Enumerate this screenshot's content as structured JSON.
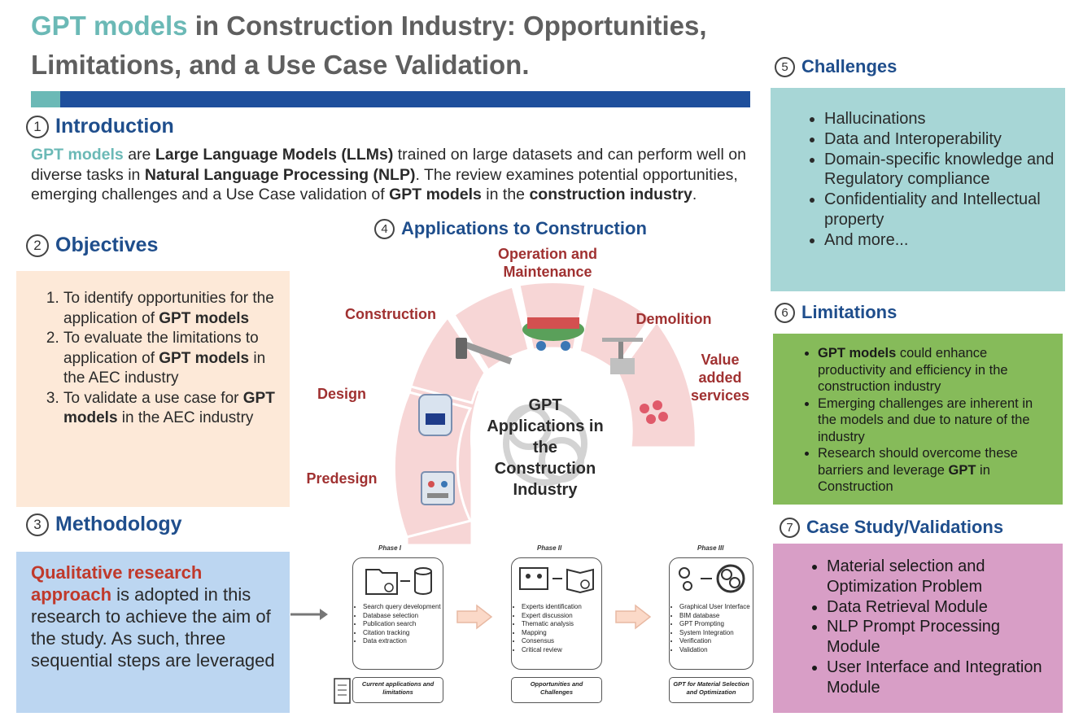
{
  "title": {
    "highlight": "GPT models",
    "rest": " in Construction Industry: Opportunities, Limitations, and a Use Case Validation."
  },
  "sections": {
    "intro": {
      "num": "1",
      "heading": "Introduction"
    },
    "objectives": {
      "num": "2",
      "heading": "Objectives"
    },
    "methodology": {
      "num": "3",
      "heading": "Methodology"
    },
    "applications": {
      "num": "4",
      "heading": "Applications to Construction"
    },
    "challenges": {
      "num": "5",
      "heading": "Challenges"
    },
    "limitations": {
      "num": "6",
      "heading": "Limitations"
    },
    "case_study": {
      "num": "7",
      "heading": "Case Study/Validations"
    }
  },
  "intro": {
    "p1": "GPT models",
    "p2": " are ",
    "p3": "Large Language Models (LLMs)",
    "p4": " trained on large datasets and can perform well on diverse tasks in ",
    "p5": "Natural Language Processing (NLP)",
    "p6": ". The review examines potential opportunities, emerging challenges and a Use Case validation of ",
    "p7": "GPT models",
    "p8": " in the ",
    "p9": "construction industry",
    "p10": "."
  },
  "objectives": {
    "o1a": "To identify opportunities for the application of ",
    "o1b": "GPT models",
    "o2a": "To evaluate the limitations to application of ",
    "o2b": "GPT models",
    "o2c": " in the AEC industry",
    "o3a": "To validate a use case for ",
    "o3b": "GPT models",
    "o3c": " in the AEC industry"
  },
  "methodology": {
    "red": "Qualitative research approach",
    "rest": " is adopted in this research to achieve the aim of the study. As such, three sequential steps are leveraged"
  },
  "challenges": [
    "Hallucinations",
    "Data and Interoperability",
    "Domain-specific knowledge and Regulatory compliance",
    "Confidentiality and Intellectual property",
    "And more..."
  ],
  "limitations": {
    "l1a": "GPT models",
    "l1b": " could enhance productivity and efficiency in the construction industry",
    "l2": "Emerging challenges are inherent in the models and due to nature of the industry",
    "l3a": "Research should overcome these barriers and leverage ",
    "l3b": "GPT",
    "l3c": " in Construction"
  },
  "case_study": [
    "Material selection and Optimization Problem",
    "Data Retrieval Module",
    "NLP Prompt Processing Module",
    "User Interface and Integration Module"
  ],
  "applications": {
    "center": "GPT Applications in the Construction Industry",
    "stages": {
      "predesign": "Predesign",
      "design": "Design",
      "construction": "Construction",
      "operation": "Operation and Maintenance",
      "demolition": "Demolition",
      "value_added": "Value added services"
    }
  },
  "phases": [
    {
      "title": "Phase I",
      "items": [
        "Search query development",
        "Database selection",
        "Publication search",
        "Citation tracking",
        "Data extraction"
      ],
      "footer": "Current applications and limitations"
    },
    {
      "title": "Phase II",
      "items": [
        "Experts identification",
        "Expert discussion",
        "Thematic analysis",
        "Mapping",
        "Consensus",
        "Critical review"
      ],
      "footer": "Opportunities and Challenges"
    },
    {
      "title": "Phase III",
      "items": [
        "Graphical User Interface",
        "BIM database",
        "GPT Prompting",
        "System Integration",
        "Verification",
        "Validation"
      ],
      "footer": "GPT for Material Selection and Optimization"
    }
  ],
  "colors": {
    "teal": "#6bb9b6",
    "navy": "#1e4f9c",
    "heading_blue": "#1f4e8c",
    "objectives_bg": "#fde9d8",
    "methodology_bg": "#bcd6f1",
    "challenges_bg": "#a7d6d6",
    "limitations_bg": "#86bb5a",
    "case_study_bg": "#d89ec6",
    "stage_label": "#a03131",
    "arc_fill": "#f7d6d6"
  },
  "icons": [
    "folder-search-icon",
    "database-icon",
    "video-conference-icon",
    "book-search-icon",
    "gears-icon",
    "openai-logo-icon",
    "scroll-icon",
    "hammer-icon",
    "scanner-device-icon",
    "machine-icon",
    "crane-icon",
    "dots-icon",
    "control-panel-icon"
  ]
}
